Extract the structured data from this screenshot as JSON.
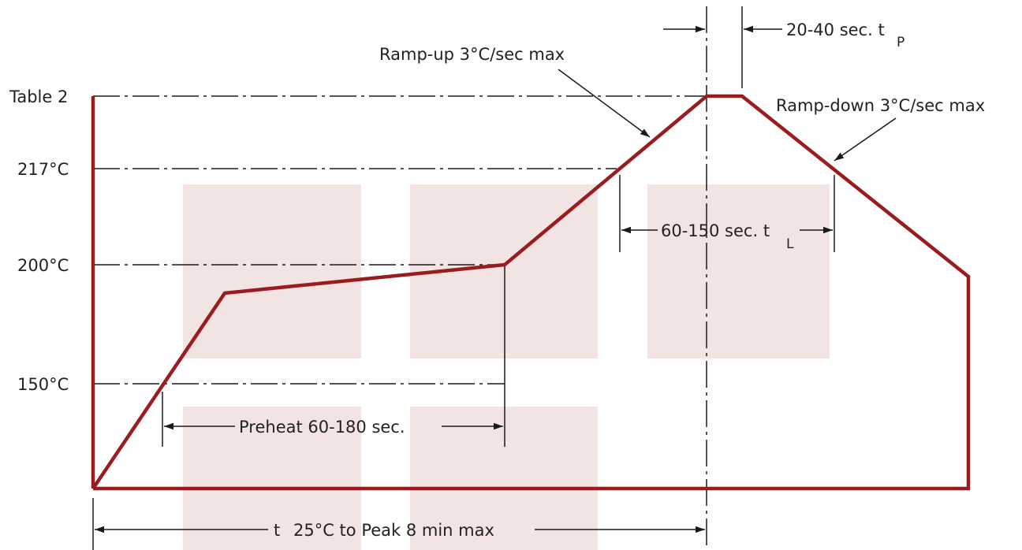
{
  "colors": {
    "profile": "#9a1c1f",
    "guide": "#1a1a1a",
    "shading": "#f3e4e4"
  },
  "y_labels": {
    "table2": "Table 2",
    "t217": "217°C",
    "t200": "200°C",
    "t150": "150°C"
  },
  "annotations": {
    "ramp_up": "Ramp-up 3°C/sec max",
    "ramp_down": "Ramp-down 3°C/sec max",
    "tp_text": "20-40 sec. t",
    "tp_sub": "P",
    "tl_text": "60-150 sec. t",
    "tl_sub": "L",
    "preheat": "Preheat 60-180 sec.",
    "total_prefix": "t",
    "total_text": "25°C to Peak 8 min max"
  }
}
